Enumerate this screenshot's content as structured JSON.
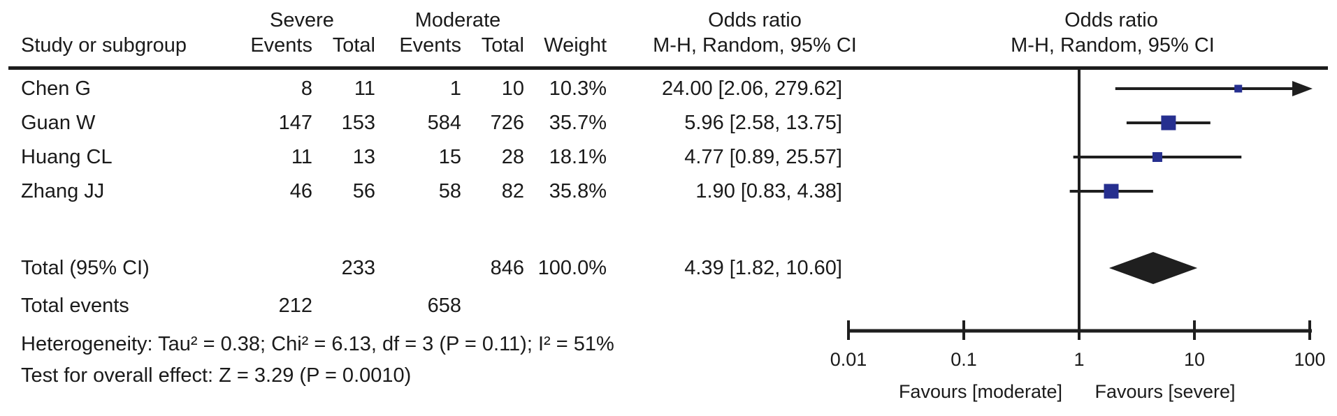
{
  "colors": {
    "square": "#262f8f",
    "line": "#1f1f1f",
    "text": "#1a1a1a"
  },
  "table": {
    "headers": {
      "group_severe": "Severe",
      "group_moderate": "Moderate",
      "study": "Study or subgroup",
      "sev_events": "Events",
      "sev_total": "Total",
      "mod_events": "Events",
      "mod_total": "Total",
      "weight": "Weight",
      "or_text_line1": "Odds ratio",
      "or_text_line2": "M-H, Random, 95% CI",
      "or_plot_line1": "Odds ratio",
      "or_plot_line2": "M-H, Random, 95% CI"
    },
    "rows": [
      {
        "study": "Chen G",
        "sev_events": "8",
        "sev_total": "11",
        "mod_events": "1",
        "mod_total": "10",
        "weight": "10.3%",
        "or_ci": "24.00 [2.06, 279.62]"
      },
      {
        "study": "Guan W",
        "sev_events": "147",
        "sev_total": "153",
        "mod_events": "584",
        "mod_total": "726",
        "weight": "35.7%",
        "or_ci": "5.96 [2.58, 13.75]"
      },
      {
        "study": "Huang CL",
        "sev_events": "11",
        "sev_total": "13",
        "mod_events": "15",
        "mod_total": "28",
        "weight": "18.1%",
        "or_ci": "4.77 [0.89, 25.57]"
      },
      {
        "study": "Zhang JJ",
        "sev_events": "46",
        "sev_total": "56",
        "mod_events": "58",
        "mod_total": "82",
        "weight": "35.8%",
        "or_ci": "1.90 [0.83, 4.38]"
      }
    ],
    "total_row": {
      "label": "Total (95% CI)",
      "sev_total": "233",
      "mod_total": "846",
      "weight": "100.0%",
      "or_ci": "4.39 [1.82, 10.60]"
    },
    "total_events_row": {
      "label": "Total events",
      "sev_events": "212",
      "mod_events": "658"
    },
    "heterogeneity": "Heterogeneity: Tau² = 0.38; Chi² = 6.13, df = 3 (P = 0.11); I² = 51%",
    "overall_effect": "Test for overall effect: Z = 3.29 (P = 0.0010)"
  },
  "chart_data": {
    "type": "forest",
    "effect_measure": "Odds ratio, M-H, Random, 95% CI",
    "scale": "log10",
    "axis": {
      "min": 0.01,
      "max": 100,
      "tick_values": [
        0.01,
        0.1,
        1,
        10,
        100
      ],
      "tick_labels": [
        "0.01",
        "0.1",
        "1",
        "10",
        "100"
      ]
    },
    "studies": [
      {
        "name": "Chen G",
        "or": 24.0,
        "ci_low": 2.06,
        "ci_high": 279.62,
        "weight_pct": 10.3
      },
      {
        "name": "Guan W",
        "or": 5.96,
        "ci_low": 2.58,
        "ci_high": 13.75,
        "weight_pct": 35.7
      },
      {
        "name": "Huang CL",
        "or": 4.77,
        "ci_low": 0.89,
        "ci_high": 25.57,
        "weight_pct": 18.1
      },
      {
        "name": "Zhang JJ",
        "or": 1.9,
        "ci_low": 0.83,
        "ci_high": 4.38,
        "weight_pct": 35.8
      }
    ],
    "total": {
      "or": 4.39,
      "ci_low": 1.82,
      "ci_high": 10.6
    },
    "favours_left": "Favours [moderate]",
    "favours_right": "Favours [severe]"
  }
}
